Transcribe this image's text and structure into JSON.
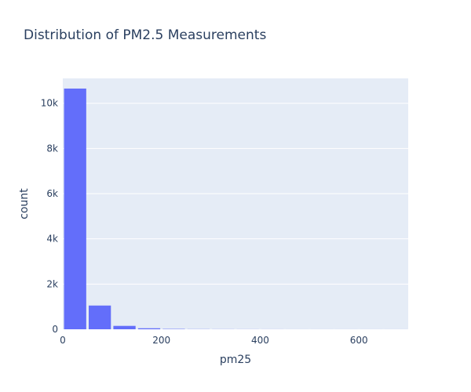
{
  "chart_data": {
    "type": "bar",
    "title": "Distribution of PM2.5 Measurements",
    "xlabel": "pm25",
    "ylabel": "count",
    "xlim": [
      0,
      700
    ],
    "ylim": [
      0,
      11100
    ],
    "x_ticks": [
      0,
      200,
      400,
      600
    ],
    "x_tick_labels": [
      "0",
      "200",
      "400",
      "600"
    ],
    "y_ticks": [
      0,
      2000,
      4000,
      6000,
      8000,
      10000
    ],
    "y_tick_labels": [
      "0",
      "2k",
      "4k",
      "6k",
      "8k",
      "10k"
    ],
    "bin_width": 50,
    "bins": [
      {
        "x0": 0,
        "x1": 50,
        "count": 10650
      },
      {
        "x0": 50,
        "x1": 100,
        "count": 1050
      },
      {
        "x0": 100,
        "x1": 150,
        "count": 150
      },
      {
        "x0": 150,
        "x1": 200,
        "count": 45
      },
      {
        "x0": 200,
        "x1": 250,
        "count": 15
      },
      {
        "x0": 250,
        "x1": 300,
        "count": 6
      },
      {
        "x0": 300,
        "x1": 350,
        "count": 4
      },
      {
        "x0": 350,
        "x1": 400,
        "count": 3
      },
      {
        "x0": 400,
        "x1": 450,
        "count": 2
      },
      {
        "x0": 450,
        "x1": 500,
        "count": 1
      },
      {
        "x0": 500,
        "x1": 550,
        "count": 1
      },
      {
        "x0": 550,
        "x1": 600,
        "count": 1
      },
      {
        "x0": 600,
        "x1": 650,
        "count": 1
      },
      {
        "x0": 650,
        "x1": 700,
        "count": 1
      }
    ],
    "grid": true,
    "legend": false,
    "colors": {
      "bar": "#636efa",
      "plot_background": "#e5ecf6",
      "grid": "#ffffff",
      "text": "#2a3f5f"
    }
  }
}
